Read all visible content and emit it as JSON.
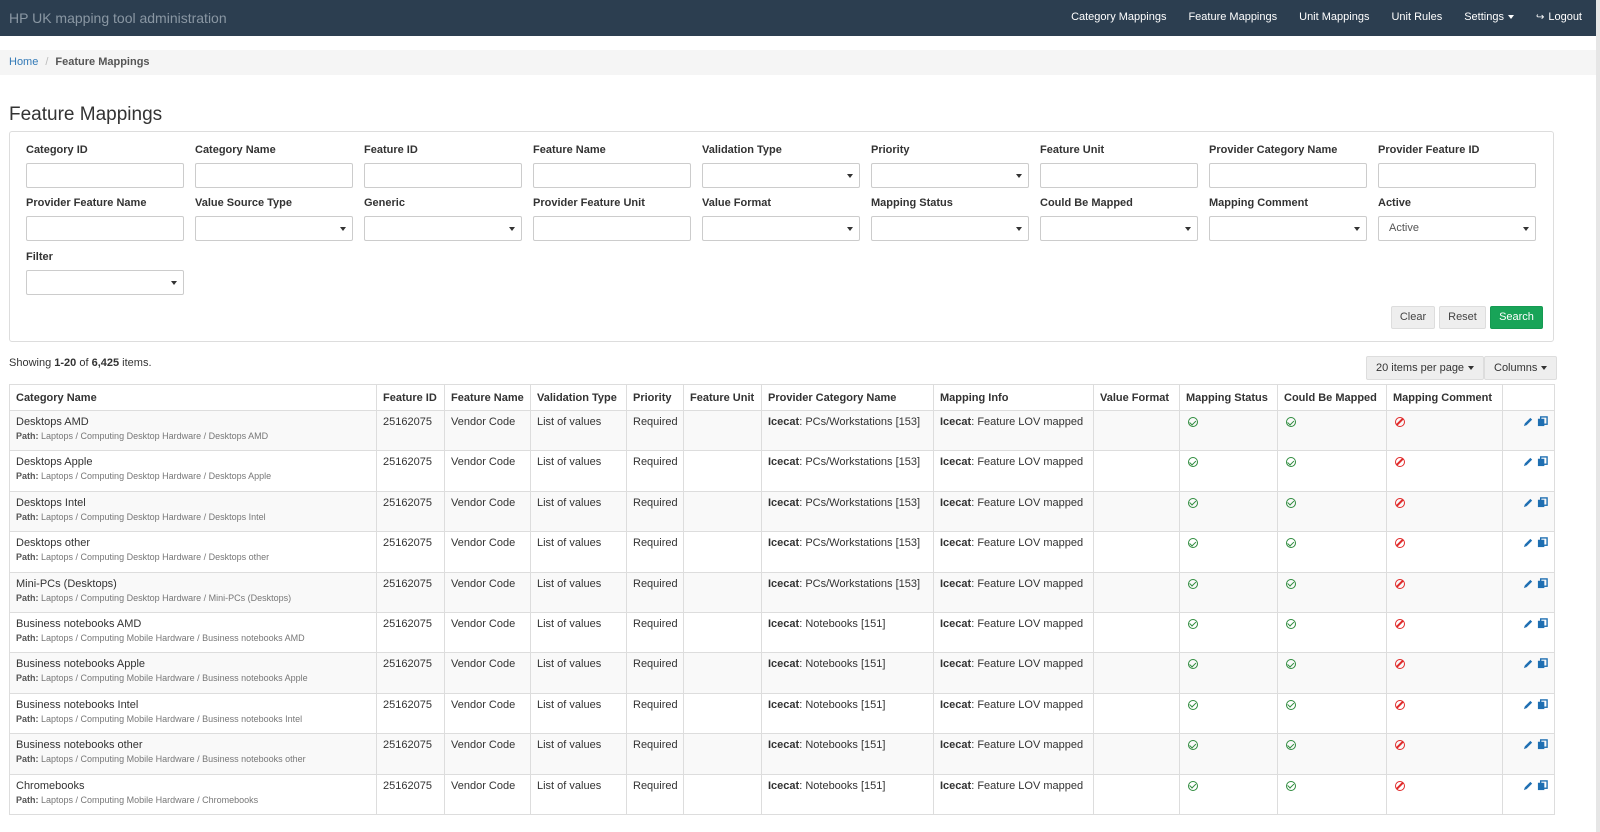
{
  "app": {
    "title": "HP UK mapping tool administration"
  },
  "nav": {
    "items": [
      {
        "label": "Category Mappings"
      },
      {
        "label": "Feature Mappings"
      },
      {
        "label": "Unit Mappings"
      },
      {
        "label": "Unit Rules"
      },
      {
        "label": "Settings",
        "dropdown": true
      },
      {
        "label": "Logout",
        "icon": "logout-icon"
      }
    ]
  },
  "breadcrumb": {
    "home": "Home",
    "current": "Feature Mappings"
  },
  "page": {
    "title": "Feature Mappings"
  },
  "filters": {
    "fields": [
      {
        "label": "Category ID",
        "type": "text",
        "value": ""
      },
      {
        "label": "Category Name",
        "type": "text",
        "value": ""
      },
      {
        "label": "Feature ID",
        "type": "text",
        "value": ""
      },
      {
        "label": "Feature Name",
        "type": "text",
        "value": ""
      },
      {
        "label": "Validation Type",
        "type": "select",
        "value": ""
      },
      {
        "label": "Priority",
        "type": "select",
        "value": ""
      },
      {
        "label": "Feature Unit",
        "type": "text",
        "value": ""
      },
      {
        "label": "Provider Category Name",
        "type": "text",
        "value": ""
      },
      {
        "label": "Provider Feature ID",
        "type": "text",
        "value": ""
      },
      {
        "label": "Provider Feature Name",
        "type": "text",
        "value": ""
      },
      {
        "label": "Value Source Type",
        "type": "select",
        "value": ""
      },
      {
        "label": "Generic",
        "type": "select",
        "value": ""
      },
      {
        "label": "Provider Feature Unit",
        "type": "text",
        "value": ""
      },
      {
        "label": "Value Format",
        "type": "select",
        "value": ""
      },
      {
        "label": "Mapping Status",
        "type": "select",
        "value": ""
      },
      {
        "label": "Could Be Mapped",
        "type": "select",
        "value": ""
      },
      {
        "label": "Mapping Comment",
        "type": "select",
        "value": ""
      },
      {
        "label": "Active",
        "type": "select",
        "value": "Active"
      },
      {
        "label": "Filter",
        "type": "select",
        "value": ""
      }
    ],
    "buttons": {
      "clear": "Clear",
      "reset": "Reset",
      "search": "Search"
    }
  },
  "summary": {
    "prefix": "Showing ",
    "range": "1-20",
    "of": " of ",
    "total": "6,425",
    "suffix": " items."
  },
  "toolbar": {
    "per_page": "20 items per page",
    "columns": "Columns"
  },
  "table": {
    "columns": [
      "Category Name",
      "Feature ID",
      "Feature Name",
      "Validation Type",
      "Priority",
      "Feature Unit",
      "Provider Category Name",
      "Mapping Info",
      "Value Format",
      "Mapping Status",
      "Could Be Mapped",
      "Mapping Comment",
      ""
    ],
    "path_label": "Path:",
    "provider_label": "Icecat",
    "rows": [
      {
        "category": "Desktops AMD",
        "path": "Laptops / Computing Desktop Hardware / Desktops AMD",
        "feature_id": "25162075",
        "feature_name": "Vendor Code",
        "validation_type": "List of values",
        "priority": "Required",
        "feature_unit": "",
        "provider_category": "PCs/Workstations [153]",
        "mapping_info": "Feature LOV mapped",
        "value_format": "",
        "mapping_status": "ok",
        "could_be_mapped": "ok",
        "mapping_comment": "ban"
      },
      {
        "category": "Desktops Apple",
        "path": "Laptops / Computing Desktop Hardware / Desktops Apple",
        "feature_id": "25162075",
        "feature_name": "Vendor Code",
        "validation_type": "List of values",
        "priority": "Required",
        "feature_unit": "",
        "provider_category": "PCs/Workstations [153]",
        "mapping_info": "Feature LOV mapped",
        "value_format": "",
        "mapping_status": "ok",
        "could_be_mapped": "ok",
        "mapping_comment": "ban"
      },
      {
        "category": "Desktops Intel",
        "path": "Laptops / Computing Desktop Hardware / Desktops Intel",
        "feature_id": "25162075",
        "feature_name": "Vendor Code",
        "validation_type": "List of values",
        "priority": "Required",
        "feature_unit": "",
        "provider_category": "PCs/Workstations [153]",
        "mapping_info": "Feature LOV mapped",
        "value_format": "",
        "mapping_status": "ok",
        "could_be_mapped": "ok",
        "mapping_comment": "ban"
      },
      {
        "category": "Desktops other",
        "path": "Laptops / Computing Desktop Hardware / Desktops other",
        "feature_id": "25162075",
        "feature_name": "Vendor Code",
        "validation_type": "List of values",
        "priority": "Required",
        "feature_unit": "",
        "provider_category": "PCs/Workstations [153]",
        "mapping_info": "Feature LOV mapped",
        "value_format": "",
        "mapping_status": "ok",
        "could_be_mapped": "ok",
        "mapping_comment": "ban"
      },
      {
        "category": "Mini-PCs (Desktops)",
        "path": "Laptops / Computing Desktop Hardware / Mini-PCs (Desktops)",
        "feature_id": "25162075",
        "feature_name": "Vendor Code",
        "validation_type": "List of values",
        "priority": "Required",
        "feature_unit": "",
        "provider_category": "PCs/Workstations [153]",
        "mapping_info": "Feature LOV mapped",
        "value_format": "",
        "mapping_status": "ok",
        "could_be_mapped": "ok",
        "mapping_comment": "ban"
      },
      {
        "category": "Business notebooks AMD",
        "path": "Laptops / Computing Mobile Hardware / Business notebooks AMD",
        "feature_id": "25162075",
        "feature_name": "Vendor Code",
        "validation_type": "List of values",
        "priority": "Required",
        "feature_unit": "",
        "provider_category": "Notebooks [151]",
        "mapping_info": "Feature LOV mapped",
        "value_format": "",
        "mapping_status": "ok",
        "could_be_mapped": "ok",
        "mapping_comment": "ban"
      },
      {
        "category": "Business notebooks Apple",
        "path": "Laptops / Computing Mobile Hardware / Business notebooks Apple",
        "feature_id": "25162075",
        "feature_name": "Vendor Code",
        "validation_type": "List of values",
        "priority": "Required",
        "feature_unit": "",
        "provider_category": "Notebooks [151]",
        "mapping_info": "Feature LOV mapped",
        "value_format": "",
        "mapping_status": "ok",
        "could_be_mapped": "ok",
        "mapping_comment": "ban"
      },
      {
        "category": "Business notebooks Intel",
        "path": "Laptops / Computing Mobile Hardware / Business notebooks Intel",
        "feature_id": "25162075",
        "feature_name": "Vendor Code",
        "validation_type": "List of values",
        "priority": "Required",
        "feature_unit": "",
        "provider_category": "Notebooks [151]",
        "mapping_info": "Feature LOV mapped",
        "value_format": "",
        "mapping_status": "ok",
        "could_be_mapped": "ok",
        "mapping_comment": "ban"
      },
      {
        "category": "Business notebooks other",
        "path": "Laptops / Computing Mobile Hardware / Business notebooks other",
        "feature_id": "25162075",
        "feature_name": "Vendor Code",
        "validation_type": "List of values",
        "priority": "Required",
        "feature_unit": "",
        "provider_category": "Notebooks [151]",
        "mapping_info": "Feature LOV mapped",
        "value_format": "",
        "mapping_status": "ok",
        "could_be_mapped": "ok",
        "mapping_comment": "ban"
      },
      {
        "category": "Chromebooks",
        "path": "Laptops / Computing Mobile Hardware / Chromebooks",
        "feature_id": "25162075",
        "feature_name": "Vendor Code",
        "validation_type": "List of values",
        "priority": "Required",
        "feature_unit": "",
        "provider_category": "Notebooks [151]",
        "mapping_info": "Feature LOV mapped",
        "value_format": "",
        "mapping_status": "ok",
        "could_be_mapped": "ok",
        "mapping_comment": "ban"
      }
    ]
  },
  "colors": {
    "navbar": "#2c3e50",
    "primary_link": "#337ab7",
    "success": "#18a458",
    "ok": "#2e8b3d",
    "ban": "#e02b2b",
    "action": "#1f6fb2"
  }
}
